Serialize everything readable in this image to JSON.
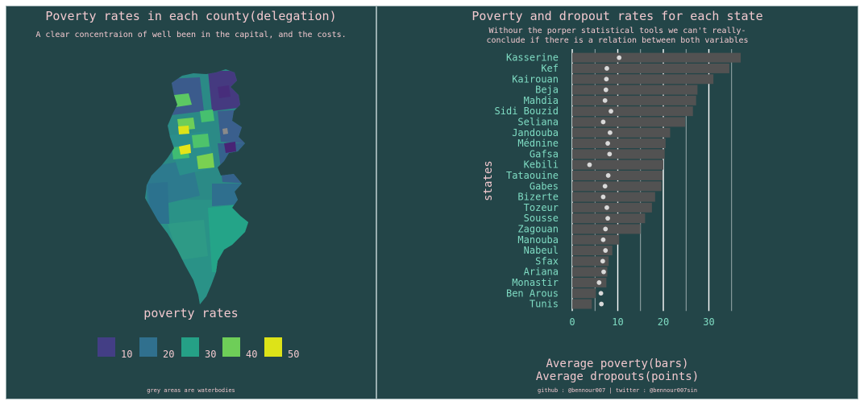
{
  "left_panel": {
    "title": "Poverty rates in each county(delegation)",
    "subtitle": "A clear concentraion of well been in the capital, and the costs.",
    "legend": {
      "title": "poverty rates",
      "items": [
        {
          "label": "10",
          "color": "#433e85"
        },
        {
          "label": "20",
          "color": "#30708e"
        },
        {
          "label": "30",
          "color": "#25a086"
        },
        {
          "label": "40",
          "color": "#6ece58"
        },
        {
          "label": "50",
          "color": "#dde318"
        }
      ]
    },
    "caption": "grey areas are waterbodies"
  },
  "right_panel": {
    "title": "Poverty and dropout rates for each state",
    "subtitle_line1": "Withour the porper statistical tools we can't really-",
    "subtitle_line2": "conclude if there is a relation between both variables",
    "xlabel_line1": "Average poverty(bars)",
    "xlabel_line2": "Average dropouts(points)",
    "caption": "github : @bennour007 | twitter : @bennour007sin"
  },
  "colors": {
    "panel_bg": "#234548",
    "bar": "#525252",
    "point": "#d9d9d9",
    "tick_label": "#7fdcc3",
    "title_text": "#f2c9cf"
  },
  "chart_data": [
    {
      "type": "map",
      "title": "Poverty rates in each county(delegation)",
      "subtitle": "A clear concentraion of well been in the capital, and the costs.",
      "legend_title": "poverty rates",
      "legend_breaks": [
        10,
        20,
        30,
        40,
        50
      ]
    },
    {
      "type": "bar",
      "title": "Poverty and dropout rates for each state",
      "ylabel": "states",
      "xlabel": "Average poverty(bars)\nAverage dropouts(points)",
      "xlim": [
        0,
        37
      ],
      "xticks": [
        0,
        10,
        20,
        30
      ],
      "categories": [
        "Kasserine",
        "Kef",
        "Kairouan",
        "Beja",
        "Mahdia",
        "Sidi Bouzid",
        "Seliana",
        "Jandouba",
        "Médnine",
        "Gafsa",
        "Kebili",
        "Tataouine",
        "Gabes",
        "Bizerte",
        "Tozeur",
        "Sousse",
        "Zagouan",
        "Manouba",
        "Nabeul",
        "Sfax",
        "Ariana",
        "Monastir",
        "Ben Arous",
        "Tunis"
      ],
      "series": [
        {
          "name": "Average poverty(bars)",
          "values": [
            37,
            34.5,
            31,
            27.5,
            27.2,
            26.5,
            24.8,
            21.5,
            20.5,
            20.3,
            20,
            19.8,
            19.6,
            18.2,
            17.5,
            16,
            15,
            10.3,
            8.8,
            8,
            7.7,
            7.5,
            5.2,
            4.3
          ]
        },
        {
          "name": "Average dropouts(points)",
          "values": [
            10.3,
            7.6,
            7.5,
            7.4,
            7.2,
            8.5,
            6.8,
            8.3,
            7.8,
            8.2,
            3.8,
            7.9,
            7.2,
            6.8,
            7.6,
            7.8,
            7.3,
            6.8,
            7.3,
            6.7,
            6.9,
            5.9,
            6.3,
            6.4
          ]
        }
      ]
    }
  ]
}
